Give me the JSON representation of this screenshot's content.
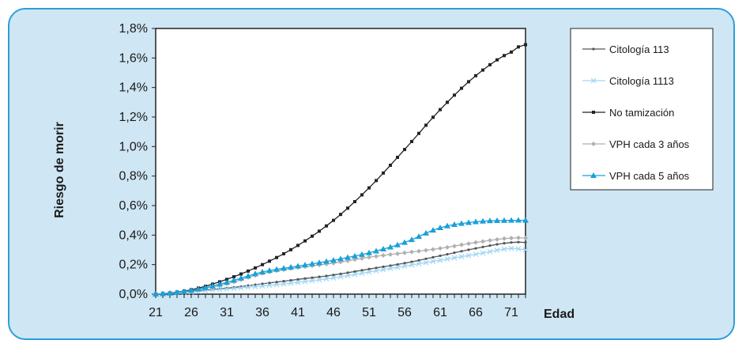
{
  "chart_data": {
    "type": "line",
    "xlabel": "Edad",
    "ylabel": "Riesgo de morir",
    "xlim": [
      21,
      73
    ],
    "ylim": [
      0,
      1.8
    ],
    "x_ticks": [
      21,
      26,
      31,
      36,
      41,
      46,
      51,
      56,
      61,
      66,
      71
    ],
    "y_ticks": [
      "0,0%",
      "0,2%",
      "0,4%",
      "0,6%",
      "0,8%",
      "1,0%",
      "1,2%",
      "1,4%",
      "1,6%",
      "1,8%"
    ],
    "y_tick_values": [
      0,
      0.2,
      0.4,
      0.6,
      0.8,
      1.0,
      1.2,
      1.4,
      1.6,
      1.8
    ],
    "grid": false,
    "legend_position": "right",
    "x": [
      21,
      26,
      31,
      36,
      41,
      46,
      51,
      56,
      61,
      66,
      71,
      73
    ],
    "series": [
      {
        "name": "Citología 113",
        "color": "#555555",
        "marker": "small-dot",
        "values": [
          0,
          0.02,
          0.04,
          0.07,
          0.1,
          0.13,
          0.17,
          0.21,
          0.26,
          0.31,
          0.35,
          0.35
        ]
      },
      {
        "name": "Citología 1113",
        "color": "#9fd6f2",
        "marker": "x",
        "values": [
          0,
          0.015,
          0.035,
          0.055,
          0.08,
          0.11,
          0.15,
          0.19,
          0.23,
          0.27,
          0.31,
          0.3
        ]
      },
      {
        "name": "No tamización",
        "color": "#222222",
        "marker": "square",
        "values": [
          0,
          0.03,
          0.1,
          0.2,
          0.33,
          0.5,
          0.72,
          0.98,
          1.25,
          1.48,
          1.64,
          1.69
        ]
      },
      {
        "name": "VPH cada 3 años",
        "color": "#b0b0b0",
        "marker": "diamond",
        "values": [
          0,
          0.025,
          0.07,
          0.14,
          0.18,
          0.21,
          0.25,
          0.28,
          0.31,
          0.35,
          0.38,
          0.38
        ]
      },
      {
        "name": "VPH cada 5 años",
        "color": "#1aa0d8",
        "marker": "triangle",
        "values": [
          0,
          0.025,
          0.08,
          0.15,
          0.19,
          0.23,
          0.28,
          0.35,
          0.45,
          0.49,
          0.5,
          0.5
        ]
      }
    ]
  }
}
